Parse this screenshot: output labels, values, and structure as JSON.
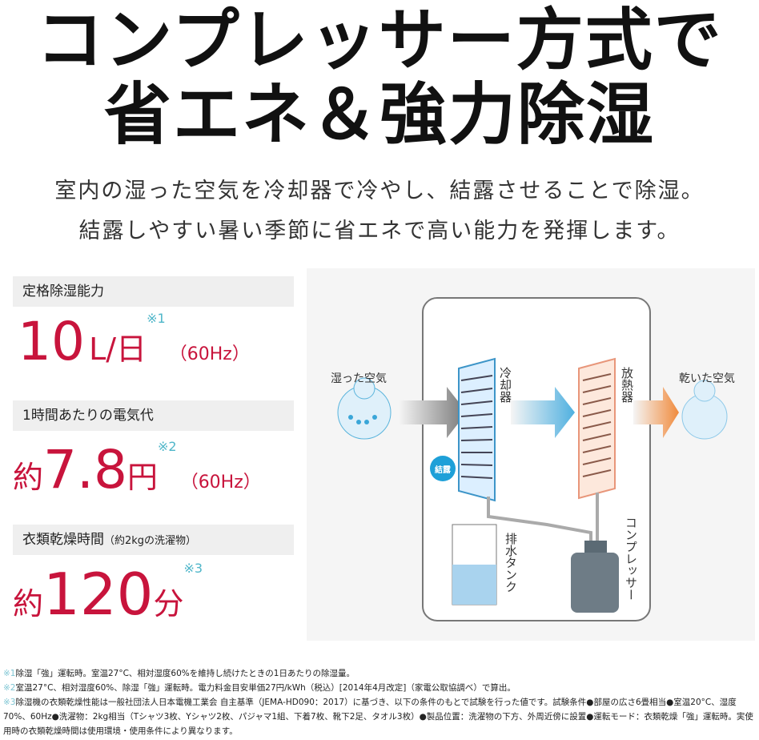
{
  "headline": {
    "line1": "コンプレッサー方式で",
    "line2": "省エネ＆強力除湿"
  },
  "subtitle": {
    "line1": "室内の湿った空気を冷却器で冷やし、結露させることで除湿。",
    "line2": "結露しやすい暑い季節に省エネで高い能力を発揮します。"
  },
  "specs": [
    {
      "label": "定格除湿能力",
      "label_note": "",
      "prefix": "",
      "value": "10",
      "unit": "L/日",
      "note": "※1",
      "freq": "（60Hz）"
    },
    {
      "label": "1時間あたりの電気代",
      "label_note": "",
      "prefix": "約",
      "value": "7.8",
      "unit": "円",
      "note": "※2",
      "freq": "（60Hz）"
    },
    {
      "label": "衣類乾燥時間",
      "label_note": "（約2kgの洗濯物）",
      "prefix": "約",
      "value": "120",
      "unit": "分",
      "note": "※3",
      "freq": ""
    }
  ],
  "diagram": {
    "humid_air": "湿った空気",
    "cooler": "冷却器",
    "radiator": "放熱器",
    "dry_air": "乾いた空気",
    "condensation": "結露",
    "drain_tank": "排水タンク",
    "compressor": "コンプレッサー"
  },
  "colors": {
    "accent": "#c8143c",
    "note": "#4fb6c9",
    "cooler": "#5ab4dc",
    "radiator": "#e8967a"
  },
  "footnotes": [
    {
      "mark": "※1",
      "text": "除湿「強」運転時。室温27°C、相対湿度60%を維持し続けたときの1日あたりの除湿量。"
    },
    {
      "mark": "※2",
      "text": "室温27°C、相対湿度60%、除湿「強」運転時。電力料金目安単価27円/kWh（税込）[2014年4月改定]（家電公取協調べ）で算出。"
    },
    {
      "mark": "※3",
      "text": "除湿機の衣類乾燥性能は一般社団法人日本電機工業会 自主基準（JEMA-HD090：2017）に基づき、以下の条件のもとで試験を行った値です。試験条件●部屋の広さ6畳相当●室温20°C、湿度70%、60Hz●洗濯物：2kg相当（Tシャツ3枚、Yシャツ2枚、パジャマ1組、下着7枚、靴下2足、タオル3枚）●製品位置：洗濯物の下方、外周近傍に設置●運転モード：衣類乾燥「強」運転時。実使用時の衣類乾燥時間は使用環境・使用条件により異なります。"
    }
  ]
}
